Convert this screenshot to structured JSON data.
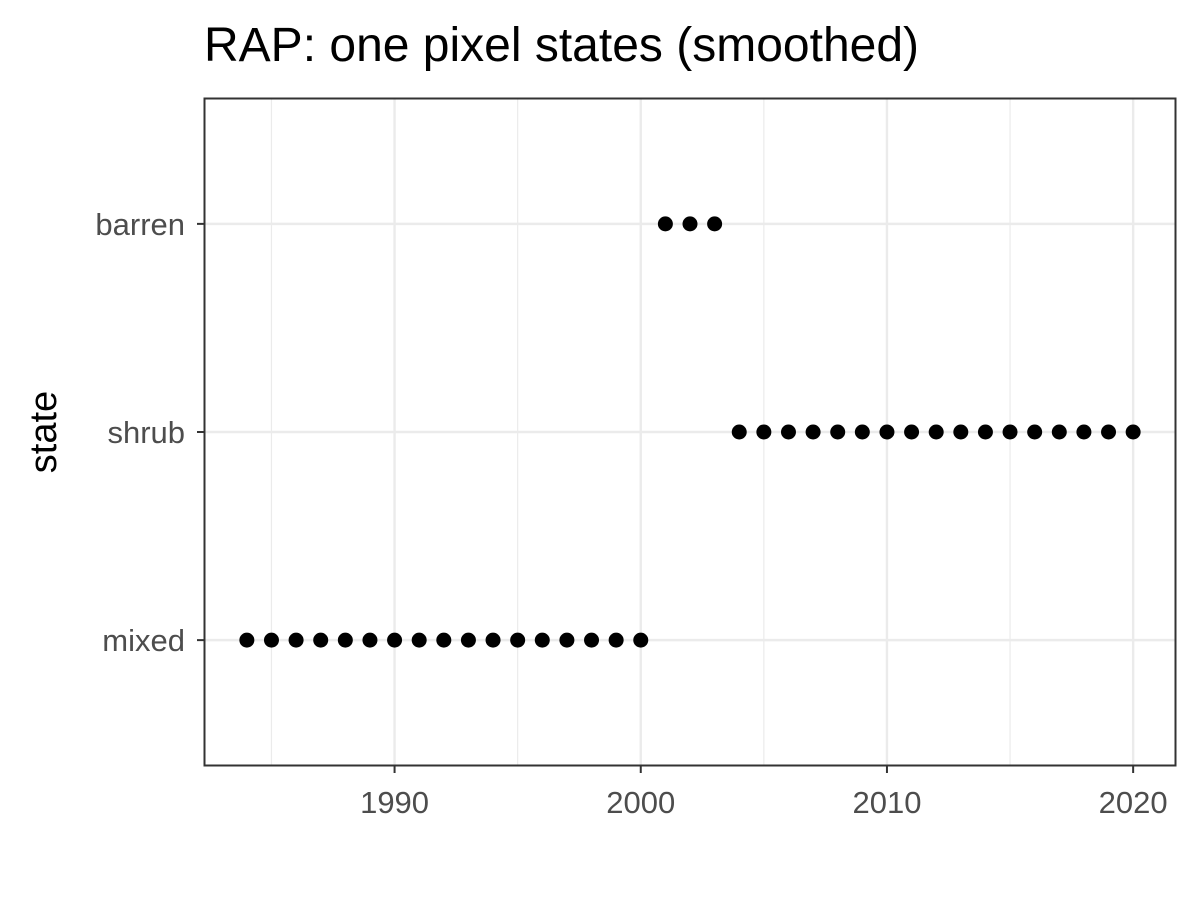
{
  "chart_data": {
    "type": "scatter",
    "title": "RAP: one pixel states (smoothed)",
    "xlabel": "",
    "ylabel": "state",
    "xlim": [
      1982.3,
      2021.7
    ],
    "x_ticks": [
      1990,
      2000,
      2010,
      2020
    ],
    "categories": [
      "mixed",
      "shrub",
      "barren"
    ],
    "grid": true,
    "series": [
      {
        "points": [
          {
            "x": 1984,
            "y": "mixed"
          },
          {
            "x": 1985,
            "y": "mixed"
          },
          {
            "x": 1986,
            "y": "mixed"
          },
          {
            "x": 1987,
            "y": "mixed"
          },
          {
            "x": 1988,
            "y": "mixed"
          },
          {
            "x": 1989,
            "y": "mixed"
          },
          {
            "x": 1990,
            "y": "mixed"
          },
          {
            "x": 1991,
            "y": "mixed"
          },
          {
            "x": 1992,
            "y": "mixed"
          },
          {
            "x": 1993,
            "y": "mixed"
          },
          {
            "x": 1994,
            "y": "mixed"
          },
          {
            "x": 1995,
            "y": "mixed"
          },
          {
            "x": 1996,
            "y": "mixed"
          },
          {
            "x": 1997,
            "y": "mixed"
          },
          {
            "x": 1998,
            "y": "mixed"
          },
          {
            "x": 1999,
            "y": "mixed"
          },
          {
            "x": 2000,
            "y": "mixed"
          },
          {
            "x": 2001,
            "y": "barren"
          },
          {
            "x": 2002,
            "y": "barren"
          },
          {
            "x": 2003,
            "y": "barren"
          },
          {
            "x": 2004,
            "y": "shrub"
          },
          {
            "x": 2005,
            "y": "shrub"
          },
          {
            "x": 2006,
            "y": "shrub"
          },
          {
            "x": 2007,
            "y": "shrub"
          },
          {
            "x": 2008,
            "y": "shrub"
          },
          {
            "x": 2009,
            "y": "shrub"
          },
          {
            "x": 2010,
            "y": "shrub"
          },
          {
            "x": 2011,
            "y": "shrub"
          },
          {
            "x": 2012,
            "y": "shrub"
          },
          {
            "x": 2013,
            "y": "shrub"
          },
          {
            "x": 2014,
            "y": "shrub"
          },
          {
            "x": 2015,
            "y": "shrub"
          },
          {
            "x": 2016,
            "y": "shrub"
          },
          {
            "x": 2017,
            "y": "shrub"
          },
          {
            "x": 2018,
            "y": "shrub"
          },
          {
            "x": 2019,
            "y": "shrub"
          },
          {
            "x": 2020,
            "y": "shrub"
          }
        ]
      }
    ],
    "colors": {
      "point": "#000000",
      "grid": "#ebebeb",
      "panel_border": "#333333",
      "tick_label": "#4d4d4d"
    }
  }
}
